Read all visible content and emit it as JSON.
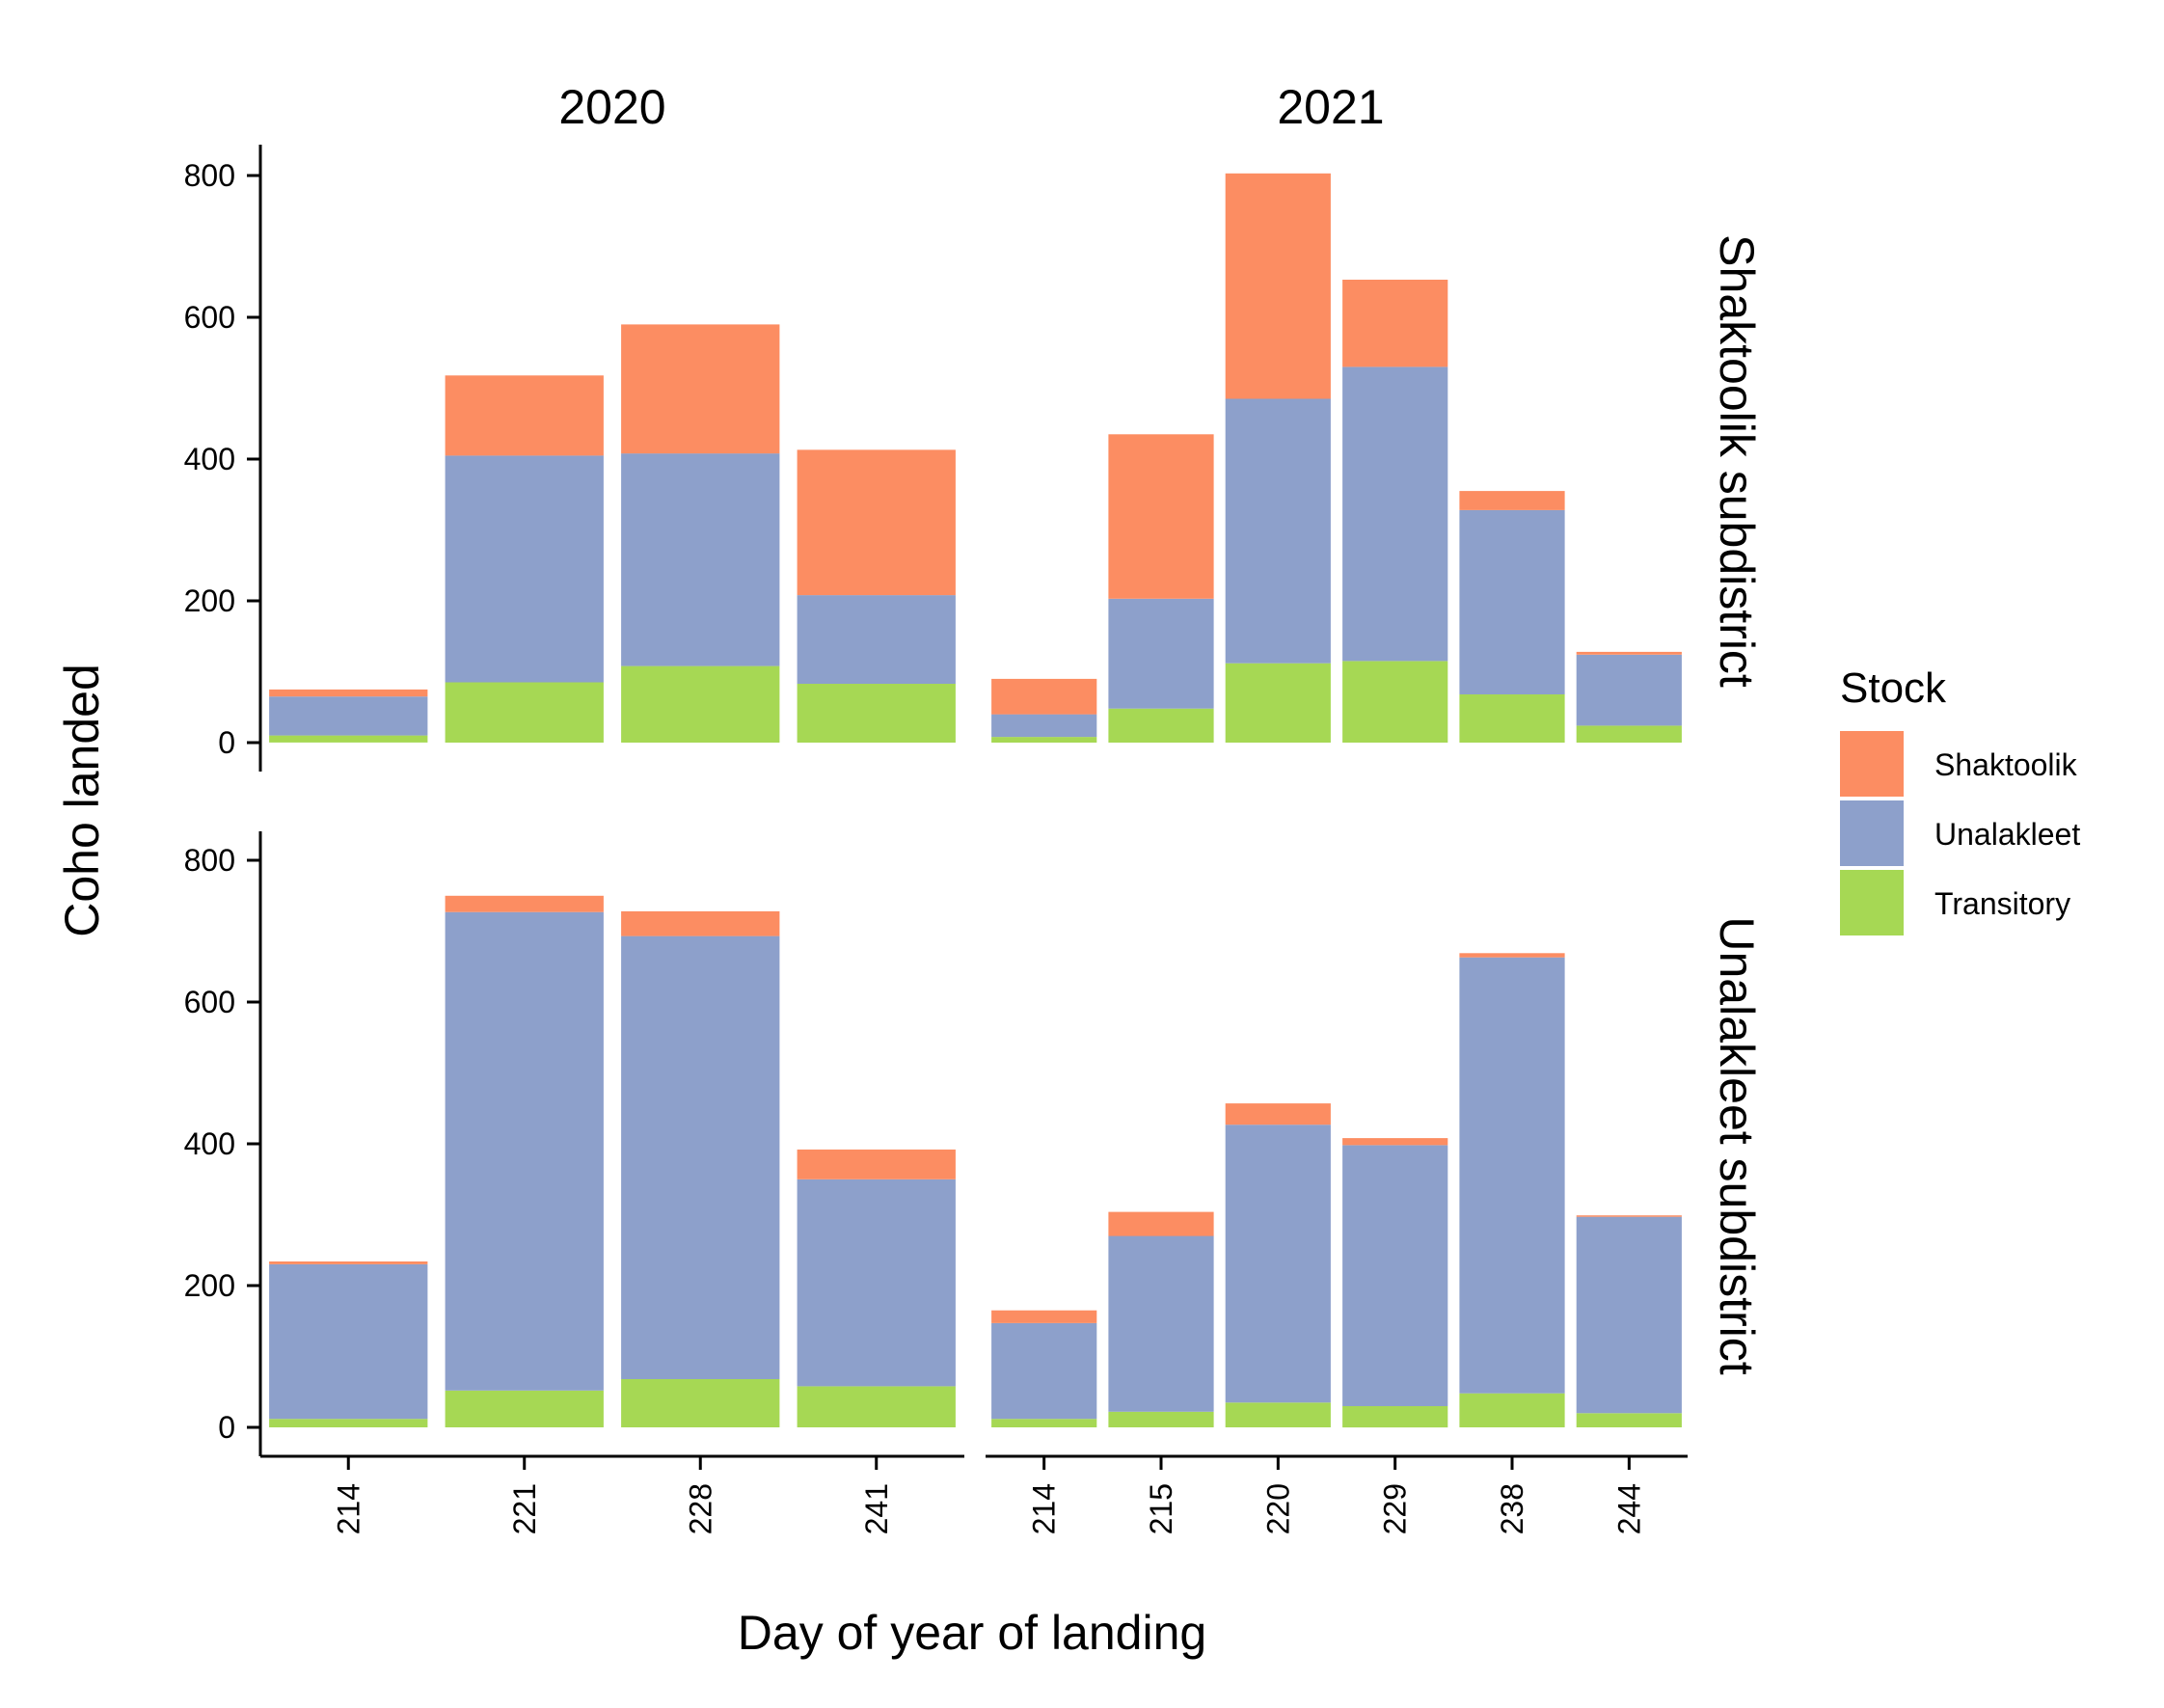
{
  "chart_data": {
    "type": "bar",
    "stacked": true,
    "xlabel": "Day of year of landing",
    "ylabel": "Coho landed",
    "ylim": [
      0,
      850
    ],
    "yticks": [
      0,
      200,
      400,
      600,
      800
    ],
    "grid": false,
    "legend": {
      "title": "Stock",
      "placement": "right",
      "entries": [
        "Shaktoolik",
        "Unalakleet",
        "Transitory"
      ]
    },
    "colors": {
      "Shaktoolik": "#fc8d62",
      "Unalakleet": "#8da0cb",
      "Transitory": "#a6d854"
    },
    "stack_order": [
      "Transitory",
      "Unalakleet",
      "Shaktoolik"
    ],
    "facet_columns": [
      "2020",
      "2021"
    ],
    "facet_rows": [
      "Shaktoolik subdistrict",
      "Unalakleet subdistrict"
    ],
    "x_categories": {
      "2020": [
        "214",
        "221",
        "228",
        "241"
      ],
      "2021": [
        "214",
        "215",
        "220",
        "229",
        "238",
        "244"
      ]
    },
    "panels": [
      {
        "column": "2020",
        "row": "Shaktoolik subdistrict",
        "series": [
          {
            "name": "Transitory",
            "values": [
              10,
              85,
              108,
              83
            ]
          },
          {
            "name": "Unalakleet",
            "values": [
              55,
              320,
              300,
              125
            ]
          },
          {
            "name": "Shaktoolik",
            "values": [
              10,
              113,
              182,
              205
            ]
          }
        ]
      },
      {
        "column": "2021",
        "row": "Shaktoolik subdistrict",
        "series": [
          {
            "name": "Transitory",
            "values": [
              8,
              48,
              112,
              115,
              68,
              24
            ]
          },
          {
            "name": "Unalakleet",
            "values": [
              32,
              155,
              373,
              415,
              260,
              100
            ]
          },
          {
            "name": "Shaktoolik",
            "values": [
              50,
              232,
              318,
              123,
              27,
              4
            ]
          }
        ]
      },
      {
        "column": "2020",
        "row": "Unalakleet subdistrict",
        "series": [
          {
            "name": "Transitory",
            "values": [
              12,
              52,
              68,
              58
            ]
          },
          {
            "name": "Unalakleet",
            "values": [
              218,
              675,
              625,
              292
            ]
          },
          {
            "name": "Shaktoolik",
            "values": [
              4,
              23,
              35,
              42
            ]
          }
        ]
      },
      {
        "column": "2021",
        "row": "Unalakleet subdistrict",
        "series": [
          {
            "name": "Transitory",
            "values": [
              12,
              22,
              35,
              30,
              48,
              20
            ]
          },
          {
            "name": "Unalakleet",
            "values": [
              135,
              248,
              392,
              368,
              615,
              277
            ]
          },
          {
            "name": "Shaktoolik",
            "values": [
              18,
              34,
              30,
              10,
              6,
              2
            ]
          }
        ]
      }
    ]
  }
}
